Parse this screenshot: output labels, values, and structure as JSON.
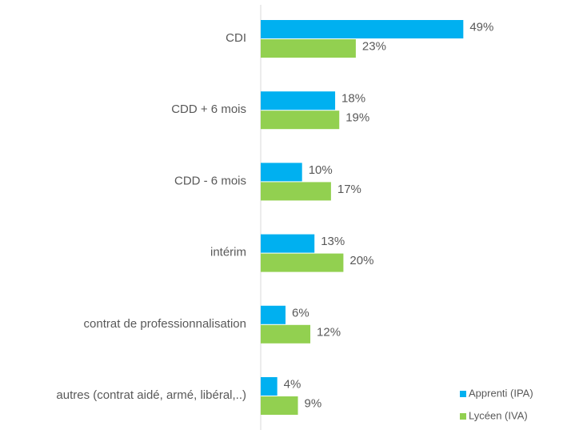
{
  "chart_data": {
    "type": "hbar",
    "categories": [
      "CDI",
      "CDD + 6 mois",
      "CDD - 6 mois",
      "intérim",
      "contrat de professionnalisation",
      "autres (contrat aidé, armé, libéral,..)"
    ],
    "series": [
      {
        "name": "Apprenti (IPA)",
        "color": "#00b0f0",
        "values": [
          49,
          18,
          10,
          13,
          6,
          4
        ],
        "value_labels": [
          "49%",
          "18%",
          "10%",
          "13%",
          "6%",
          "4%"
        ]
      },
      {
        "name": "Lycéen (IVA)",
        "color": "#92d050",
        "values": [
          23,
          19,
          17,
          20,
          12,
          9
        ],
        "value_labels": [
          "23%",
          "19%",
          "17%",
          "20%",
          "12%",
          "9%"
        ]
      }
    ],
    "legend": "bottom-right"
  }
}
